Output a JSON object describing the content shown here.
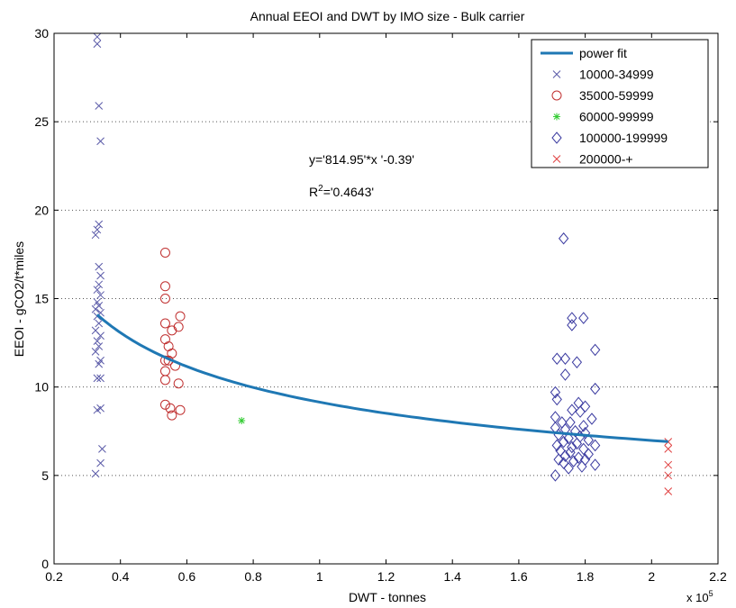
{
  "chart_data": {
    "type": "scatter",
    "title": "Annual EEOI and DWT by IMO size - Bulk carrier",
    "xlabel": "DWT - tonnes",
    "ylabel": "EEOI - gCO2/t*miles",
    "x_multiplier_label": "x 10",
    "x_multiplier_exponent": "5",
    "xlim": [
      0.2,
      2.2
    ],
    "ylim": [
      0,
      30
    ],
    "x_ticks": [
      0.2,
      0.4,
      0.6,
      0.8,
      1,
      1.2,
      1.4,
      1.6,
      1.8,
      2,
      2.2
    ],
    "x_tick_labels": [
      "0.2",
      "0.4",
      "0.6",
      "0.8",
      "1",
      "1.2",
      "1.4",
      "1.6",
      "1.8",
      "2",
      "2.2"
    ],
    "y_ticks": [
      0,
      5,
      10,
      15,
      20,
      25,
      30
    ],
    "y_tick_labels": [
      "0",
      "5",
      "10",
      "15",
      "20",
      "25",
      "30"
    ],
    "grid": "horizontal dotted",
    "legend_position": "top-right",
    "fit": {
      "name": "power fit",
      "color": "#1f78b4",
      "coef": 814.95,
      "exp": -0.39,
      "x_range": [
        0.33,
        2.05
      ]
    },
    "annotations": {
      "equation": "y='814.95'*x '-0.39'",
      "r2_prefix": "R",
      "r2_sup": "2",
      "r2_value": "='0.4643'"
    },
    "series": [
      {
        "name": "10000-34999",
        "marker": "x",
        "color": "#5a5aa8",
        "points": [
          [
            0.33,
            29.8
          ],
          [
            0.33,
            29.4
          ],
          [
            0.335,
            25.9
          ],
          [
            0.34,
            23.9
          ],
          [
            0.335,
            19.2
          ],
          [
            0.33,
            18.9
          ],
          [
            0.325,
            18.6
          ],
          [
            0.335,
            16.8
          ],
          [
            0.34,
            16.3
          ],
          [
            0.335,
            15.8
          ],
          [
            0.33,
            15.5
          ],
          [
            0.34,
            15.2
          ],
          [
            0.33,
            14.8
          ],
          [
            0.335,
            14.6
          ],
          [
            0.325,
            14.4
          ],
          [
            0.34,
            14.2
          ],
          [
            0.33,
            14.0
          ],
          [
            0.335,
            13.6
          ],
          [
            0.325,
            13.2
          ],
          [
            0.34,
            12.9
          ],
          [
            0.33,
            12.6
          ],
          [
            0.335,
            12.3
          ],
          [
            0.325,
            12.0
          ],
          [
            0.34,
            11.5
          ],
          [
            0.335,
            11.3
          ],
          [
            0.33,
            10.5
          ],
          [
            0.34,
            10.5
          ],
          [
            0.33,
            8.7
          ],
          [
            0.34,
            8.8
          ],
          [
            0.345,
            6.5
          ],
          [
            0.34,
            5.7
          ],
          [
            0.325,
            5.1
          ]
        ]
      },
      {
        "name": "35000-59999",
        "marker": "o",
        "color": "#c03030",
        "points": [
          [
            0.535,
            17.6
          ],
          [
            0.535,
            15.7
          ],
          [
            0.535,
            15.0
          ],
          [
            0.58,
            14.0
          ],
          [
            0.535,
            13.6
          ],
          [
            0.575,
            13.4
          ],
          [
            0.555,
            13.2
          ],
          [
            0.535,
            12.7
          ],
          [
            0.545,
            12.3
          ],
          [
            0.555,
            11.9
          ],
          [
            0.535,
            11.5
          ],
          [
            0.545,
            11.5
          ],
          [
            0.565,
            11.2
          ],
          [
            0.535,
            10.9
          ],
          [
            0.535,
            10.4
          ],
          [
            0.575,
            10.2
          ],
          [
            0.535,
            9.0
          ],
          [
            0.55,
            8.8
          ],
          [
            0.58,
            8.7
          ],
          [
            0.555,
            8.4
          ]
        ]
      },
      {
        "name": "60000-99999",
        "marker": "*",
        "color": "#33cc33",
        "points": [
          [
            0.765,
            8.1
          ]
        ]
      },
      {
        "name": "100000-199999",
        "marker": "diamond",
        "color": "#3a3aa0",
        "points": [
          [
            1.735,
            18.4
          ],
          [
            1.76,
            13.9
          ],
          [
            1.795,
            13.9
          ],
          [
            1.76,
            13.5
          ],
          [
            1.83,
            12.1
          ],
          [
            1.715,
            11.6
          ],
          [
            1.74,
            11.6
          ],
          [
            1.775,
            11.4
          ],
          [
            1.74,
            10.7
          ],
          [
            1.83,
            9.9
          ],
          [
            1.71,
            9.7
          ],
          [
            1.715,
            9.3
          ],
          [
            1.78,
            9.1
          ],
          [
            1.8,
            8.9
          ],
          [
            1.76,
            8.7
          ],
          [
            1.785,
            8.6
          ],
          [
            1.71,
            8.3
          ],
          [
            1.82,
            8.2
          ],
          [
            1.73,
            8.0
          ],
          [
            1.755,
            8.0
          ],
          [
            1.795,
            7.8
          ],
          [
            1.71,
            7.7
          ],
          [
            1.74,
            7.6
          ],
          [
            1.77,
            7.5
          ],
          [
            1.8,
            7.4
          ],
          [
            1.72,
            7.3
          ],
          [
            1.785,
            7.2
          ],
          [
            1.75,
            7.1
          ],
          [
            1.81,
            7.0
          ],
          [
            1.735,
            6.9
          ],
          [
            1.775,
            6.8
          ],
          [
            1.715,
            6.7
          ],
          [
            1.83,
            6.7
          ],
          [
            1.76,
            6.6
          ],
          [
            1.795,
            6.5
          ],
          [
            1.725,
            6.4
          ],
          [
            1.755,
            6.3
          ],
          [
            1.81,
            6.2
          ],
          [
            1.74,
            6.1
          ],
          [
            1.78,
            6.0
          ],
          [
            1.72,
            5.9
          ],
          [
            1.8,
            5.9
          ],
          [
            1.765,
            5.8
          ],
          [
            1.735,
            5.7
          ],
          [
            1.83,
            5.6
          ],
          [
            1.79,
            5.5
          ],
          [
            1.75,
            5.4
          ],
          [
            1.71,
            5.0
          ]
        ]
      },
      {
        "name": "200000-+",
        "marker": "x",
        "color": "#e04040",
        "points": [
          [
            2.05,
            6.9
          ],
          [
            2.05,
            6.5
          ],
          [
            2.05,
            5.6
          ],
          [
            2.05,
            5.0
          ],
          [
            2.05,
            4.1
          ]
        ]
      }
    ]
  }
}
